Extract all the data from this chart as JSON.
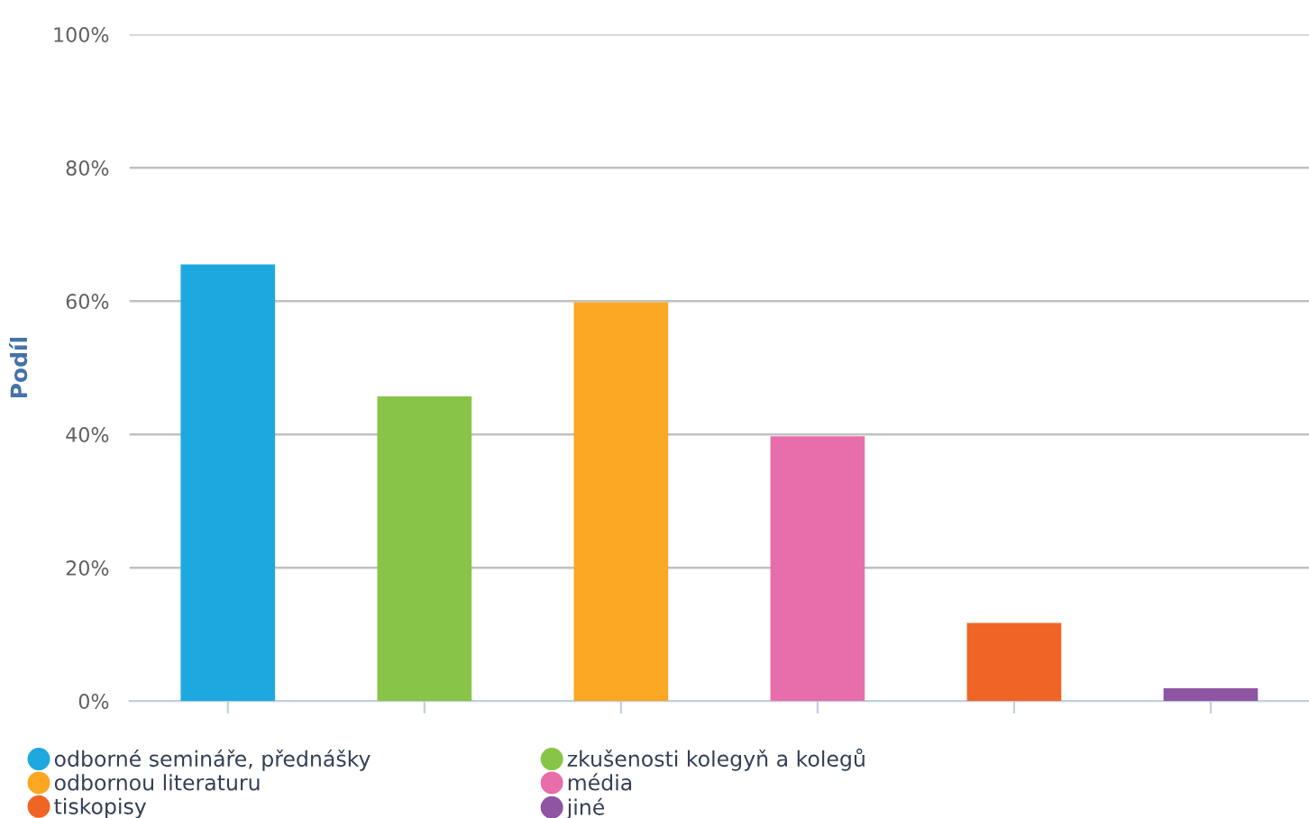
{
  "chart_data": {
    "type": "bar",
    "ylabel": "Podíl",
    "categories": [
      null,
      null,
      null,
      null,
      null,
      null
    ],
    "series": [
      {
        "name": "odborné semináře, přednášky",
        "color": "#1ea8e0",
        "values": [
          65.5,
          null,
          null,
          null,
          null,
          null
        ]
      },
      {
        "name": "zkušenosti kolegyň a kolegů",
        "color": "#88c447",
        "values": [
          null,
          45.7,
          null,
          null,
          null,
          null
        ]
      },
      {
        "name": "odbornou literaturu",
        "color": "#fba723",
        "values": [
          null,
          null,
          59.8,
          null,
          null,
          null
        ]
      },
      {
        "name": "média",
        "color": "#e76eaa",
        "values": [
          null,
          null,
          null,
          39.7,
          null,
          null
        ]
      },
      {
        "name": "tiskopisy",
        "color": "#f06526",
        "values": [
          null,
          null,
          null,
          null,
          11.7,
          null
        ]
      },
      {
        "name": "jiné",
        "color": "#8e55a3",
        "values": [
          null,
          null,
          null,
          null,
          null,
          1.9
        ]
      }
    ],
    "ylim": [
      0,
      100
    ],
    "yticks": [
      {
        "value": 0,
        "label": "0%"
      },
      {
        "value": 20,
        "label": "20%"
      },
      {
        "value": 40,
        "label": "40%"
      },
      {
        "value": 60,
        "label": "60%"
      },
      {
        "value": 80,
        "label": "80%"
      },
      {
        "value": 100,
        "label": "100%"
      }
    ],
    "grid": "y",
    "legend": "bottom"
  }
}
